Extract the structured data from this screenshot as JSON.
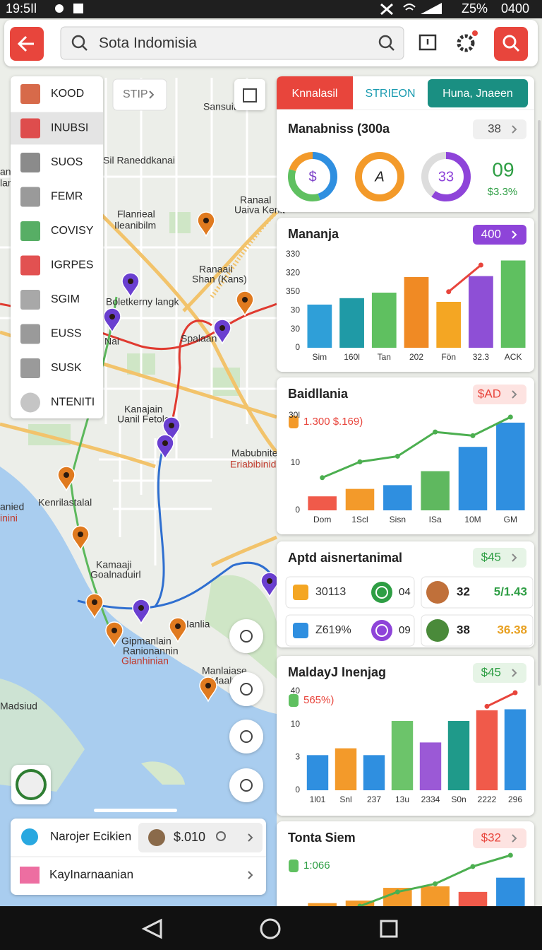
{
  "status_bar": {
    "time": "19:5Il",
    "battery": "Z5%",
    "clock": "0400"
  },
  "search": {
    "query": "Sota Indomisia"
  },
  "menu": {
    "items": [
      "KOOD",
      "INUBSI",
      "SUOS",
      "FEMR",
      "COVISY",
      "IGRPES",
      "SGIM",
      "EUSS",
      "SUSK",
      "NTENITI"
    ]
  },
  "stip_button": "STIP",
  "map_labels": [
    "Sansuit",
    "Sil Raneddkanai",
    "Flanrieal",
    "Ileanibilm",
    "Ranaal",
    "Uaiva Kenit",
    "Ranaaii",
    "Shan (Kans)",
    "Boletkerny langk",
    "Nai",
    "Spalaan",
    "Kanajain",
    "Uanil Fetolo",
    "Mabubnite",
    "Eriabibinidal",
    "Kenrilastalal",
    "anied",
    "inini",
    "Kamaaji",
    "Goalnaduirl",
    "Ianlia",
    "Gipmanlain",
    "Ranionannin",
    "Glanhinian",
    "Manlaiase",
    "Maaluja",
    "Madsiud",
    "an",
    "lan"
  ],
  "tabs": [
    "Knnalasil",
    "STRIEON",
    "Huna, Jnaeen"
  ],
  "summary": {
    "title": "Manabniss (300a",
    "badge": "38",
    "donuts": [
      "$",
      "A",
      "33"
    ],
    "value": "09",
    "change": "$3.3%"
  },
  "charts": [
    {
      "type": "bar",
      "title": "Mananja",
      "badge": "400",
      "y_labels": [
        "330",
        "320",
        "350",
        "30",
        "30",
        "0"
      ],
      "ylim": [
        0,
        100
      ],
      "categories": [
        "Sim",
        "160l",
        "Tan",
        "202",
        "Fön",
        "32.3",
        "ACK"
      ],
      "values": [
        47,
        54,
        60,
        77,
        50,
        78,
        95
      ],
      "colors": [
        "#2f9fd8",
        "#1f9aa6",
        "#5fc060",
        "#f08a24",
        "#f4a623",
        "#8e4fd6",
        "#5fc060"
      ],
      "line": {
        "color": "#e8453c",
        "values": [
          null,
          null,
          null,
          null,
          61,
          90,
          null
        ]
      }
    },
    {
      "type": "bar",
      "title": "Baidllania",
      "badge": "$AD",
      "legend": "1.300 $.169)",
      "y_labels": [
        "30l",
        "10",
        "0"
      ],
      "ylim": [
        0,
        100
      ],
      "categories": [
        "Dom",
        "1Scl",
        "Sisn",
        "ISa",
        "10M",
        "GM"
      ],
      "values": [
        15,
        23,
        27,
        42,
        68,
        94
      ],
      "colors": [
        "#f05a4a",
        "#f39a2a",
        "#2f8fe0",
        "#5fb85f",
        "#2f8fe0",
        "#2f8fe0"
      ],
      "line": {
        "color": "#4caf50",
        "values": [
          35,
          52,
          58,
          84,
          80,
          100
        ]
      }
    },
    {
      "type": "bar",
      "title": "MaldayJ Inenjag",
      "badge": "$45",
      "legend": "565%)",
      "y_labels": [
        "40",
        "10",
        "3",
        "0"
      ],
      "ylim": [
        0,
        100
      ],
      "categories": [
        "1l01",
        "Snl",
        "237",
        "13u",
        "2334",
        "S0n",
        "2222",
        "296"
      ],
      "values": [
        36,
        43,
        36,
        71,
        49,
        71,
        82,
        83
      ],
      "colors": [
        "#2f8fe0",
        "#f39a2a",
        "#2f8fe0",
        "#6cc46a",
        "#9b59d6",
        "#1f9a8a",
        "#f05a4a",
        "#2f8fe0"
      ],
      "line": {
        "color": "#e8453c",
        "values": [
          null,
          null,
          null,
          null,
          null,
          null,
          86,
          100
        ]
      }
    },
    {
      "type": "bar",
      "title": "Tonta Siem",
      "badge": "$32",
      "legend": "1:066",
      "ylim": [
        0,
        100
      ],
      "values": [
        6,
        11,
        36,
        39,
        28,
        56
      ],
      "colors": [
        "#f39a2a",
        "#f39a2a",
        "#f39a2a",
        "#f39a2a",
        "#f05a4a",
        "#2f8fe0"
      ],
      "line": {
        "color": "#4caf50",
        "values": [
          null,
          0,
          28,
          44,
          78,
          100
        ]
      }
    }
  ],
  "stats": {
    "title": "Aptd aisnertanimal",
    "badge": "$45",
    "items": [
      {
        "label": "30113",
        "value": "04"
      },
      {
        "label": "32",
        "value": "5/1.43"
      },
      {
        "label": "Z619%",
        "value": "09"
      },
      {
        "label": "38",
        "value": "36.38"
      }
    ]
  },
  "bottom_card": {
    "row1": {
      "title": "Narojer Ecikien",
      "price": "$.010"
    },
    "row2": {
      "title": "KayInarnaanian"
    }
  }
}
